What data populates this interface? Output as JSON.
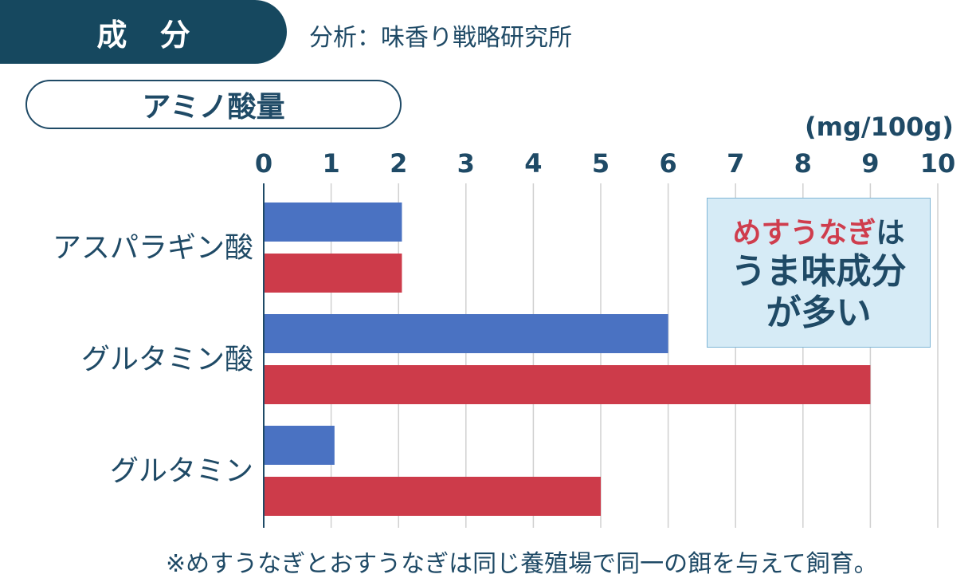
{
  "header": {
    "section_label": "成 分",
    "source": "分析：味香り戦略研究所"
  },
  "subtitle": "アミノ酸量",
  "colors": {
    "series_1": "#4a72c2",
    "series_2": "#cd3b4a",
    "primary": "#16485f",
    "callout_bg": "#d6ebf6"
  },
  "callout": {
    "highlight": "めすうなぎ",
    "line1_suffix": "は",
    "line2": "うま味成分",
    "line3": "が多い"
  },
  "footnote": "※めすうなぎとおすうなぎは同じ養殖場で同一の餌を与えて飼育。",
  "chart_data": {
    "type": "bar",
    "orientation": "horizontal",
    "unit_label": "(mg/100g)",
    "categories": [
      "アスパラギン酸",
      "グルタミン酸",
      "グルタミン"
    ],
    "series": [
      {
        "values": [
          2.05,
          6.0,
          1.05
        ]
      },
      {
        "values": [
          2.05,
          9.0,
          5.0
        ]
      }
    ],
    "xlim": [
      0,
      10
    ],
    "ticks": [
      "0",
      "1",
      "2",
      "3",
      "4",
      "5",
      "6",
      "7",
      "8",
      "9",
      "10"
    ],
    "grid": true,
    "legend": "none"
  }
}
